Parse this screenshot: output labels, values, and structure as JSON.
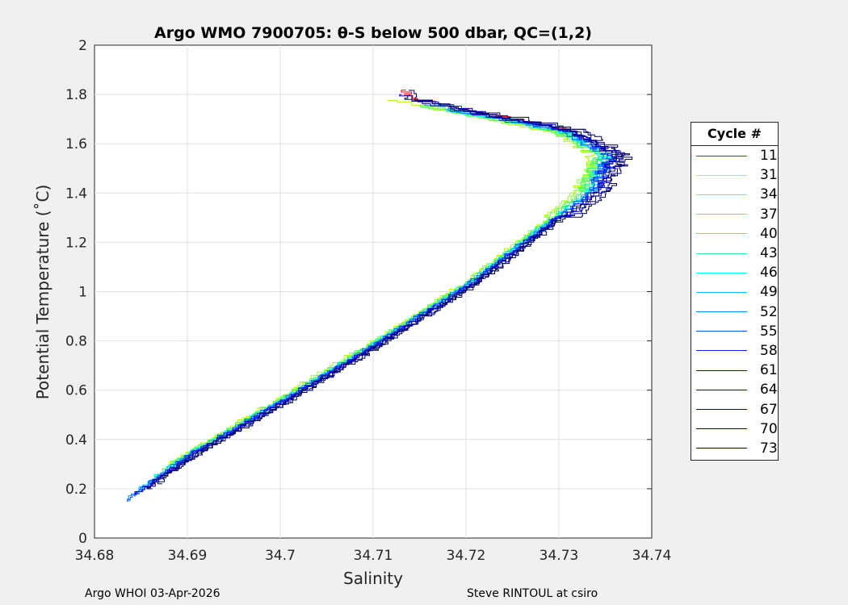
{
  "chart_data": {
    "type": "line",
    "title": "Argo WMO 7900705: θ-S below 500 dbar,  QC=(1,2)",
    "xlabel": "Salinity",
    "ylabel": "Potential Temperature (˚C)",
    "xlim": [
      34.68,
      34.74
    ],
    "ylim": [
      0,
      2
    ],
    "xticks": [
      "34.68",
      "34.69",
      "34.7",
      "34.71",
      "34.72",
      "34.73",
      "34.74"
    ],
    "yticks": [
      "0",
      "0.2",
      "0.4",
      "0.6",
      "0.8",
      "1",
      "1.2",
      "1.4",
      "1.6",
      "1.8",
      "2"
    ],
    "grid": true,
    "legend_title": "Cycle #",
    "legend_position": "right",
    "centerline": [
      [
        34.6835,
        0.16
      ],
      [
        34.69,
        0.33
      ],
      [
        34.7,
        0.55
      ],
      [
        34.71,
        0.78
      ],
      [
        34.72,
        1.02
      ],
      [
        34.728,
        1.25
      ],
      [
        34.733,
        1.4
      ],
      [
        34.735,
        1.55
      ],
      [
        34.73,
        1.65
      ],
      [
        34.72,
        1.72
      ],
      [
        34.712,
        1.78
      ]
    ],
    "series": [
      {
        "name": "11",
        "color": "#ff0000",
        "s_offset": 0.001,
        "t_range": [
          1.65,
          1.82
        ]
      },
      {
        "name": "31",
        "color": "#aaff00",
        "s_offset": -0.0008,
        "t_range": [
          0.28,
          1.78
        ]
      },
      {
        "name": "34",
        "color": "#80ff20",
        "s_offset": -0.0005,
        "t_range": [
          0.3,
          1.75
        ]
      },
      {
        "name": "37",
        "color": "#55ff55",
        "s_offset": -0.0003,
        "t_range": [
          0.3,
          1.76
        ]
      },
      {
        "name": "40",
        "color": "#30ff80",
        "s_offset": -0.0002,
        "t_range": [
          0.25,
          1.74
        ]
      },
      {
        "name": "43",
        "color": "#20eeaa",
        "s_offset": 0.0,
        "t_range": [
          0.22,
          1.75
        ]
      },
      {
        "name": "46",
        "color": "#00ffff",
        "s_offset": 0.0002,
        "t_range": [
          0.2,
          1.74
        ]
      },
      {
        "name": "49",
        "color": "#00c8ff",
        "s_offset": 0.0001,
        "t_range": [
          0.18,
          1.72
        ]
      },
      {
        "name": "52",
        "color": "#0088ff",
        "s_offset": 0.0003,
        "t_range": [
          0.15,
          1.76
        ]
      },
      {
        "name": "55",
        "color": "#0055ff",
        "s_offset": 0.0002,
        "t_range": [
          0.15,
          1.74
        ]
      },
      {
        "name": "58",
        "color": "#0022ff",
        "s_offset": 0.0005,
        "t_range": [
          0.17,
          1.7
        ]
      },
      {
        "name": "61",
        "color": "#0000dd",
        "s_offset": 0.0006,
        "t_range": [
          0.18,
          1.72
        ]
      },
      {
        "name": "64",
        "color": "#0000bb",
        "s_offset": 0.001,
        "t_range": [
          0.2,
          1.8
        ]
      },
      {
        "name": "67",
        "color": "#000099",
        "s_offset": 0.0012,
        "t_range": [
          0.2,
          1.78
        ]
      },
      {
        "name": "70",
        "color": "#000077",
        "s_offset": 0.0008,
        "t_range": [
          0.2,
          1.8
        ]
      },
      {
        "name": "73",
        "color": "#000055",
        "s_offset": 0.0015,
        "t_range": [
          0.22,
          1.82
        ]
      }
    ]
  },
  "footer": {
    "left": "Argo WHOI 03-Apr-2026",
    "right": "Steve RINTOUL at csiro"
  }
}
